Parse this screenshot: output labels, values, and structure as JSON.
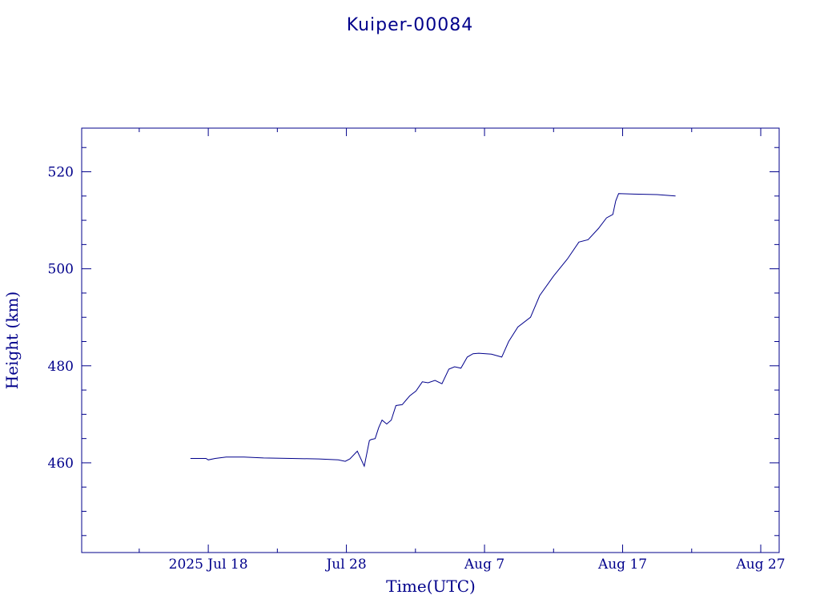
{
  "chart_data": {
    "type": "line",
    "title": "Kuiper-00084",
    "xlabel": "Time(UTC)",
    "ylabel": "Height (km)",
    "x_unit": "date (UTC, 2025)",
    "xlim": [
      "2025-07-08T20:00",
      "2025-08-28T08:00"
    ],
    "ylim": [
      441.5,
      529
    ],
    "x_ticks": [
      {
        "date": "2025-07-18",
        "label": "2025 Jul 18"
      },
      {
        "date": "2025-07-28",
        "label": "Jul 28"
      },
      {
        "date": "2025-08-07",
        "label": "Aug  7"
      },
      {
        "date": "2025-08-17",
        "label": "Aug 17"
      },
      {
        "date": "2025-08-27",
        "label": "Aug 27"
      }
    ],
    "y_ticks": [
      460,
      480,
      500,
      520
    ],
    "grid": false,
    "line_color": "#00008b",
    "series": [
      {
        "x": [
          "2025-07-16T17:00",
          "2025-07-17T20:00",
          "2025-07-18T00:00",
          "2025-07-18T12:00",
          "2025-07-19T07:00",
          "2025-07-20T14:00",
          "2025-07-22T00:00",
          "2025-07-24T00:00",
          "2025-07-26T00:00",
          "2025-07-27T10:00",
          "2025-07-27T22:00",
          "2025-07-28T06:00",
          "2025-07-28T19:00",
          "2025-07-29T07:00",
          "2025-07-29T16:00",
          "2025-07-29T19:00",
          "2025-07-30T02:00",
          "2025-07-30T08:00",
          "2025-07-30T14:00",
          "2025-07-30T22:00",
          "2025-07-31T06:00",
          "2025-07-31T14:00",
          "2025-08-01T01:00",
          "2025-08-01T14:00",
          "2025-08-02T01:00",
          "2025-08-02T12:00",
          "2025-08-02T22:00",
          "2025-08-03T10:00",
          "2025-08-03T22:00",
          "2025-08-04T10:00",
          "2025-08-04T20:00",
          "2025-08-05T07:00",
          "2025-08-05T18:00",
          "2025-08-06T04:00",
          "2025-08-06T14:00",
          "2025-08-07T12:00",
          "2025-08-08T06:00",
          "2025-08-08T18:00",
          "2025-08-09T10:00",
          "2025-08-10T08:00",
          "2025-08-11T00:00",
          "2025-08-12T00:00",
          "2025-08-13T00:00",
          "2025-08-13T20:00",
          "2025-08-14T12:00",
          "2025-08-15T06:00",
          "2025-08-15T20:00",
          "2025-08-16T07:00",
          "2025-08-16T12:00",
          "2025-08-16T17:00",
          "2025-08-17T20:00",
          "2025-08-19T12:00",
          "2025-08-20T20:00"
        ],
        "y": [
          460.9,
          460.9,
          460.6,
          460.9,
          461.2,
          461.2,
          461.0,
          460.9,
          460.8,
          460.6,
          460.3,
          460.8,
          462.4,
          459.3,
          464.6,
          464.8,
          465.0,
          467.2,
          468.8,
          468.0,
          468.8,
          471.8,
          472.0,
          473.8,
          474.8,
          476.7,
          476.5,
          477.0,
          476.3,
          479.3,
          479.8,
          479.5,
          481.8,
          482.5,
          482.6,
          482.4,
          481.8,
          485.0,
          488.0,
          490.0,
          494.5,
          498.5,
          502.0,
          505.5,
          506.0,
          508.3,
          510.5,
          511.2,
          514.0,
          515.5,
          515.4,
          515.3,
          515.0
        ]
      }
    ]
  }
}
